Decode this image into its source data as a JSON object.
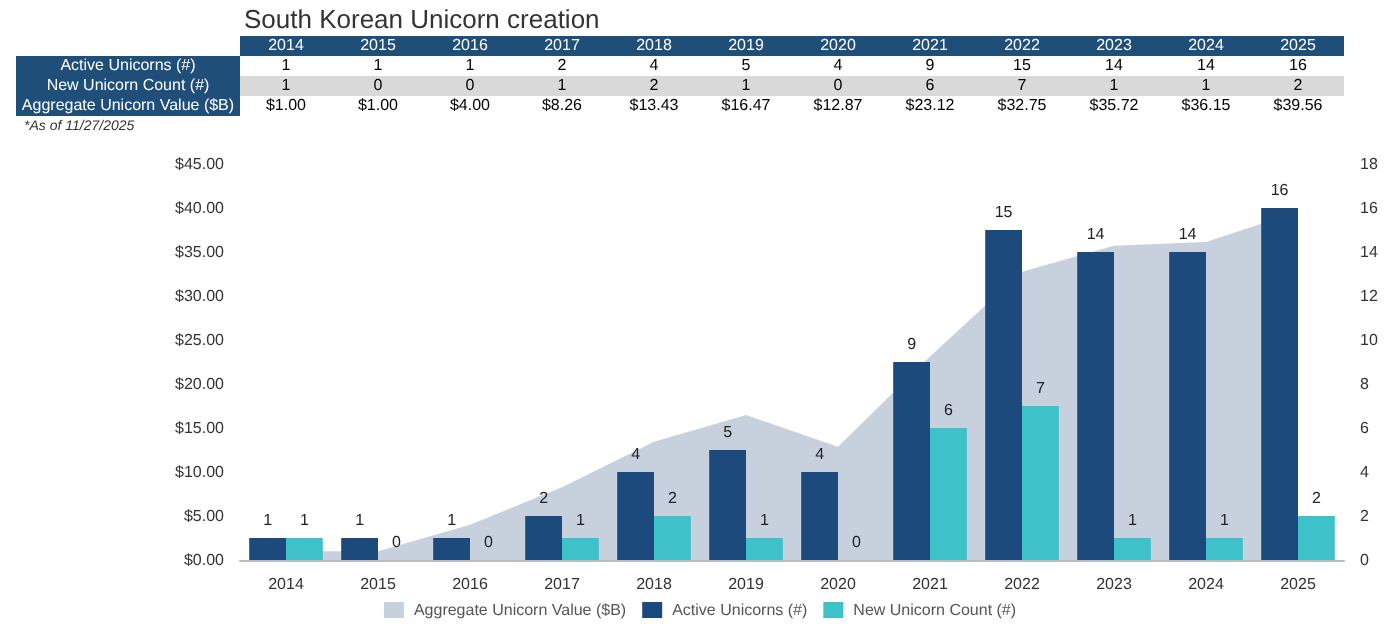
{
  "chart_data": {
    "type": "bar",
    "title": "South Korean Unicorn creation",
    "categories": [
      "2014",
      "2015",
      "2016",
      "2017",
      "2018",
      "2019",
      "2020",
      "2021",
      "2022",
      "2023",
      "2024",
      "2025"
    ],
    "series": [
      {
        "name": "Active Unicorns (#)",
        "axis": "y2",
        "color": "#1c4a7c",
        "values": [
          1,
          1,
          1,
          2,
          4,
          5,
          4,
          9,
          15,
          14,
          14,
          16
        ],
        "value_labels": [
          "1",
          "1",
          "1",
          "2",
          "4",
          "5",
          "4",
          "9",
          "15",
          "14",
          "14",
          "16"
        ]
      },
      {
        "name": "New Unicorn Count (#)",
        "axis": "y2",
        "color": "#3ec1c9",
        "values": [
          1,
          0,
          0,
          1,
          2,
          1,
          0,
          6,
          7,
          1,
          1,
          2
        ],
        "value_labels": [
          "1",
          "0",
          "0",
          "1",
          "2",
          "1",
          "0",
          "6",
          "7",
          "1",
          "1",
          "2"
        ]
      },
      {
        "name": "Aggregate Unicorn Value ($B)",
        "type": "area",
        "color": "#c6d1dd",
        "values": [
          1.0,
          1.0,
          4.0,
          8.26,
          13.43,
          16.47,
          12.87,
          23.12,
          32.75,
          35.72,
          36.15,
          39.56
        ],
        "value_labels": [
          "$1.00",
          "$1.00",
          "$4.00",
          "$8.26",
          "$13.43",
          "$16.47",
          "$12.87",
          "$23.12",
          "$32.75",
          "$35.72",
          "$36.15",
          "$39.56"
        ]
      }
    ],
    "ylim": [
      0,
      45
    ],
    "yticks": [
      {
        "value": 0,
        "label": "$0.00"
      },
      {
        "value": 5,
        "label": "$5.00"
      },
      {
        "value": 10,
        "label": "$10.00"
      },
      {
        "value": 15,
        "label": "$15.00"
      },
      {
        "value": 20,
        "label": "$20.00"
      },
      {
        "value": 25,
        "label": "$25.00"
      },
      {
        "value": 30,
        "label": "$30.00"
      },
      {
        "value": 35,
        "label": "$35.00"
      },
      {
        "value": 40,
        "label": "$40.00"
      },
      {
        "value": 45,
        "label": "$45.00"
      }
    ],
    "y2lim": [
      0,
      18
    ],
    "y2ticks": [
      0,
      2,
      4,
      6,
      8,
      10,
      12,
      14,
      16,
      18
    ],
    "annotations": [
      "*As of 11/27/2025"
    ],
    "grid": false,
    "legend": "bottom"
  }
}
